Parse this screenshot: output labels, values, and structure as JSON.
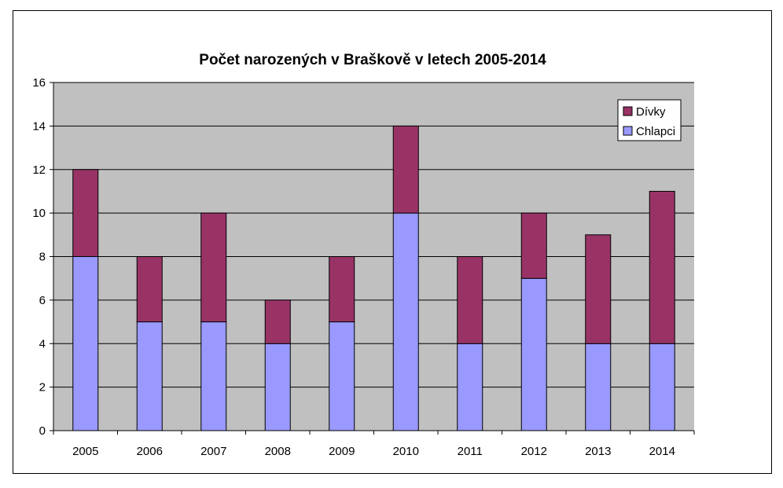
{
  "chart_data": {
    "type": "bar",
    "stacked": true,
    "title": "Počet narozených v Braškově v letech 2005-2014",
    "xlabel": "",
    "ylabel": "",
    "categories": [
      "2005",
      "2006",
      "2007",
      "2008",
      "2009",
      "2010",
      "2011",
      "2012",
      "2013",
      "2014"
    ],
    "series": [
      {
        "name": "Chlapci",
        "color": "#9999FF",
        "values": [
          8,
          5,
          5,
          4,
          5,
          10,
          4,
          7,
          4,
          4
        ]
      },
      {
        "name": "Dívky",
        "color": "#993366",
        "values": [
          4,
          3,
          5,
          2,
          3,
          4,
          4,
          3,
          5,
          7
        ]
      }
    ],
    "ylim": [
      0,
      16
    ],
    "yticks": [
      0,
      2,
      4,
      6,
      8,
      10,
      12,
      14,
      16
    ],
    "grid": true,
    "legend": "top-right",
    "plot_background": "#C0C0C0"
  }
}
